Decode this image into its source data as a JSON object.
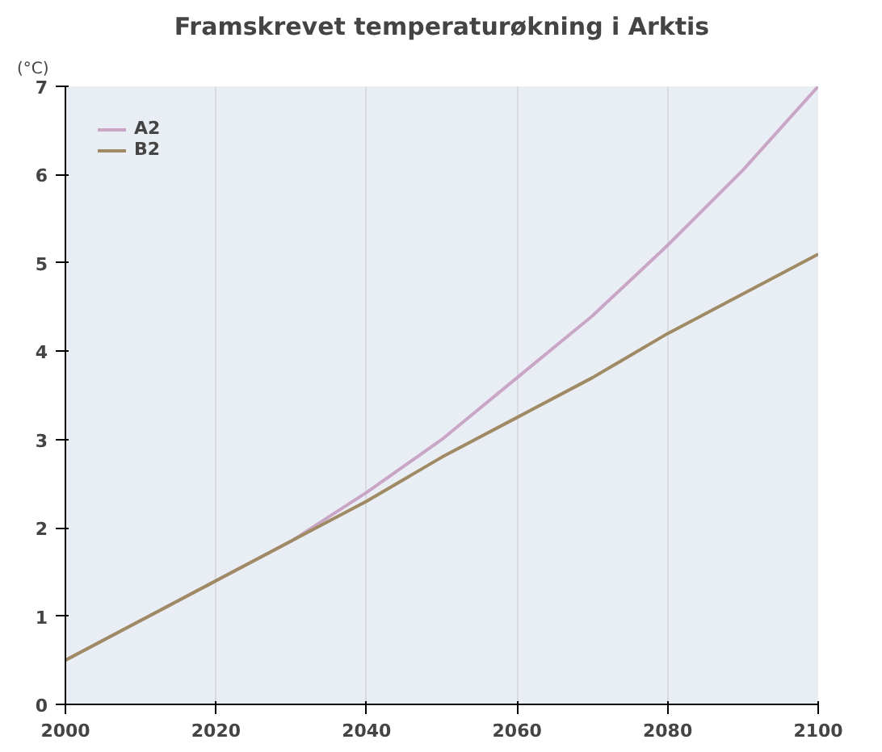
{
  "chart_data": {
    "type": "line",
    "title": "Framskrevet temperaturøkning i Arktis",
    "ylabel": "(°C)",
    "x": [
      2000,
      2010,
      2020,
      2030,
      2040,
      2050,
      2060,
      2070,
      2080,
      2090,
      2100
    ],
    "series": [
      {
        "name": "A2",
        "color": "#c9a6c6",
        "values": [
          0.5,
          0.95,
          1.4,
          1.85,
          2.4,
          3.0,
          3.7,
          4.4,
          5.2,
          6.05,
          7.0
        ]
      },
      {
        "name": "B2",
        "color": "#a08a64",
        "values": [
          0.5,
          0.95,
          1.4,
          1.85,
          2.3,
          2.8,
          3.25,
          3.7,
          4.2,
          4.65,
          5.1
        ]
      }
    ],
    "xlim": [
      2000,
      2100
    ],
    "ylim": [
      0,
      7
    ],
    "xticks": [
      2000,
      2020,
      2040,
      2060,
      2080,
      2100
    ],
    "yticks": [
      0,
      1,
      2,
      3,
      4,
      5,
      6,
      7
    ],
    "grid": "x",
    "legend": "top left",
    "marker": "none",
    "line_style": "solid"
  }
}
